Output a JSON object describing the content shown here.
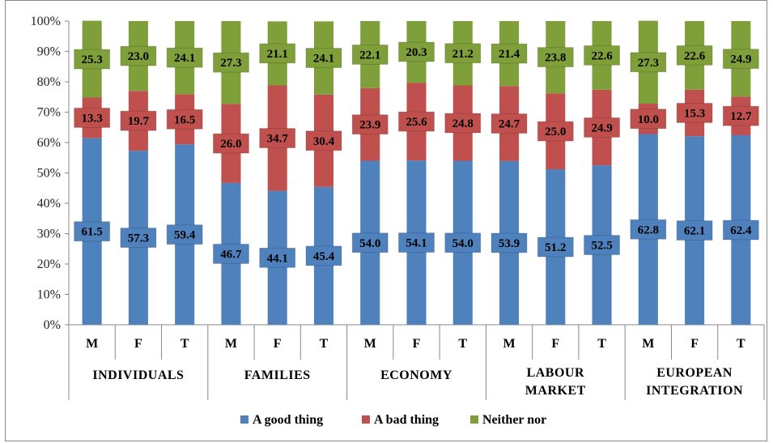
{
  "chart_data": {
    "type": "bar",
    "stacked": true,
    "percent": true,
    "ylim": [
      0,
      100
    ],
    "yticks": [
      "0%",
      "10%",
      "20%",
      "30%",
      "40%",
      "50%",
      "60%",
      "70%",
      "80%",
      "90%",
      "100%"
    ],
    "groups": [
      {
        "label_lines": [
          "INDIVIDUALS"
        ],
        "categories": [
          "M",
          "F",
          "T"
        ]
      },
      {
        "label_lines": [
          "FAMILIES"
        ],
        "categories": [
          "M",
          "F",
          "T"
        ]
      },
      {
        "label_lines": [
          "ECONOMY"
        ],
        "categories": [
          "M",
          "F",
          "T"
        ]
      },
      {
        "label_lines": [
          "LABOUR",
          "MARKET"
        ],
        "categories": [
          "M",
          "F",
          "T"
        ]
      },
      {
        "label_lines": [
          "EUROPEAN",
          "INTEGRATION"
        ],
        "categories": [
          "M",
          "F",
          "T"
        ]
      }
    ],
    "series": [
      {
        "name": "A good thing",
        "color": "#4f81bd",
        "values": [
          61.5,
          57.3,
          59.4,
          46.7,
          44.1,
          45.4,
          54.0,
          54.1,
          54.0,
          53.9,
          51.2,
          52.5,
          62.8,
          62.1,
          62.4
        ],
        "labels": [
          "61.5",
          "57.3",
          "59.4",
          "46.7",
          "44.1",
          "45.4",
          "54.0",
          "54.1",
          "54.0",
          "53.9",
          "51.2",
          "52.5",
          "62.8",
          "62.1",
          "62.4"
        ]
      },
      {
        "name": "A bad thing",
        "color": "#c0504d",
        "values": [
          13.3,
          19.7,
          16.5,
          26.0,
          34.7,
          30.4,
          23.9,
          25.6,
          24.8,
          24.7,
          25.0,
          24.9,
          10.0,
          15.3,
          12.7
        ],
        "labels": [
          "13.3",
          "19.7",
          "16.5",
          "26.0",
          "34.7",
          "30.4",
          "23.9",
          "25.6",
          "24.8",
          "24.7",
          "25.0",
          "24.9",
          "10.0",
          "15.3",
          "12.7"
        ]
      },
      {
        "name": "Neither nor",
        "color": "#7f9f3a",
        "values": [
          25.3,
          23.0,
          24.1,
          27.3,
          21.1,
          24.1,
          22.1,
          20.3,
          21.2,
          21.4,
          23.8,
          22.6,
          27.3,
          22.6,
          24.9
        ],
        "labels": [
          "25.3",
          "23.0",
          "24.1",
          "27.3",
          "21.1",
          "24.1",
          "22.1",
          "20.3",
          "21.2",
          "21.4",
          "23.8",
          "22.6",
          "27.3",
          "22.6",
          "24.9"
        ]
      }
    ],
    "legend_position": "bottom",
    "grid": false
  }
}
